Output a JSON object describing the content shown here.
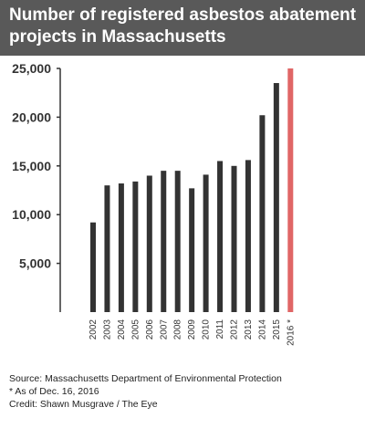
{
  "header": {
    "title_line1": "Number of registered asbestos abatement",
    "title_line2": "projects in Massachusetts"
  },
  "colors": {
    "header_bg": "#595959",
    "bar": "#333333",
    "highlight_bar": "#e06666"
  },
  "chart_data": {
    "type": "bar",
    "categories": [
      "2002",
      "2003",
      "2004",
      "2005",
      "2006",
      "2007",
      "2008",
      "2009",
      "2010",
      "2011",
      "2012",
      "2013",
      "2014",
      "2015",
      "2016 *"
    ],
    "values": [
      9200,
      13000,
      13200,
      13400,
      14000,
      14500,
      14500,
      12700,
      14100,
      15500,
      15000,
      15600,
      20200,
      23500,
      25000
    ],
    "highlight_index": 14,
    "ylim": [
      0,
      25000
    ],
    "y_ticks": [
      5000,
      10000,
      15000,
      20000,
      25000
    ],
    "y_tick_labels": [
      "5,000",
      "10,000",
      "15,000",
      "20,000",
      "25,000"
    ],
    "grid": false
  },
  "footer": {
    "source": "Source: Massachusetts Department of Environmental Protection",
    "note": "* As of Dec. 16, 2016",
    "credit": "Credit: Shawn Musgrave / The Eye"
  }
}
